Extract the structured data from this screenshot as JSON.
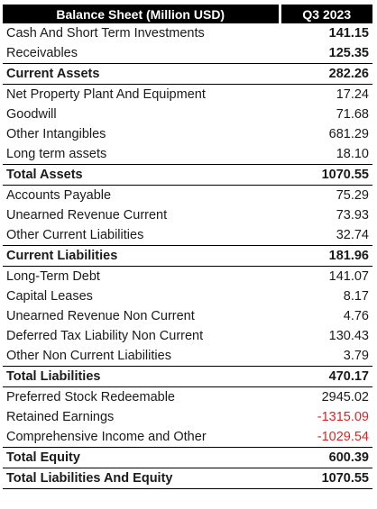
{
  "header": {
    "label": "Balance Sheet (Million USD)",
    "period": "Q3 2023"
  },
  "colors": {
    "header_bg": "#000000",
    "header_text": "#ffffff",
    "negative": "#d62728"
  },
  "rows": [
    {
      "label": "Cash And Short Term Investments",
      "value": "141.15",
      "bold_value": true
    },
    {
      "label": "Receivables",
      "value": "125.35",
      "bold_value": true
    },
    {
      "label": "Current Assets",
      "value": "282.26",
      "bold": true
    },
    {
      "label": "Net Property Plant And Equipment",
      "value": "17.24"
    },
    {
      "label": "Goodwill",
      "value": "71.68"
    },
    {
      "label": "Other Intangibles",
      "value": "681.29"
    },
    {
      "label": "Long term assets",
      "value": "18.10"
    },
    {
      "label": "Total Assets",
      "value": "1070.55",
      "bold": true
    },
    {
      "label": "Accounts Payable",
      "value": "75.29"
    },
    {
      "label": "Unearned Revenue Current",
      "value": "73.93"
    },
    {
      "label": "Other Current Liabilities",
      "value": "32.74"
    },
    {
      "label": "Current Liabilities",
      "value": "181.96",
      "bold": true
    },
    {
      "label": "Long-Term Debt",
      "value": "141.07"
    },
    {
      "label": "Capital Leases",
      "value": "8.17"
    },
    {
      "label": "Unearned Revenue Non Current",
      "value": "4.76"
    },
    {
      "label": "Deferred Tax Liability Non Current",
      "value": "130.43"
    },
    {
      "label": "Other Non Current Liabilities",
      "value": "3.79"
    },
    {
      "label": "Total Liabilities",
      "value": "470.17",
      "bold": true
    },
    {
      "label": "Preferred Stock Redeemable",
      "value": "2945.02"
    },
    {
      "label": "Retained Earnings",
      "value": "-1315.09",
      "negative": true
    },
    {
      "label": "Comprehensive Income and Other",
      "value": "-1029.54",
      "negative": true
    },
    {
      "label": "Total Equity",
      "value": "600.39",
      "bold": true
    },
    {
      "label": "Total Liabilities And Equity",
      "value": "1070.55",
      "bold": true
    }
  ]
}
